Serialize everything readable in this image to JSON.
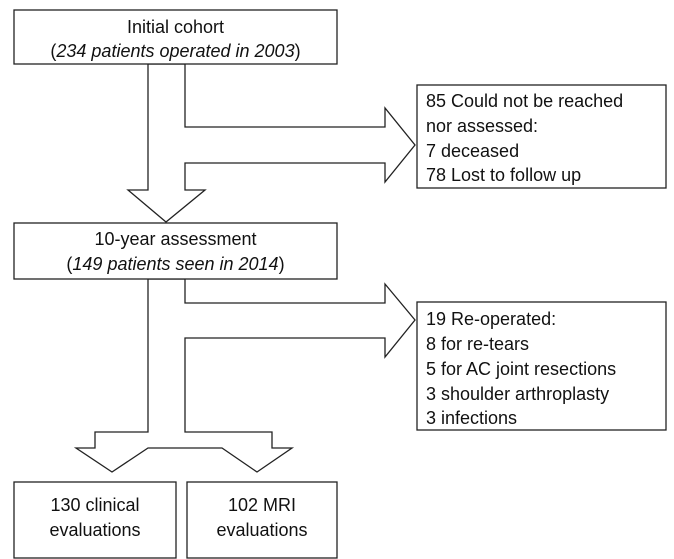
{
  "boxes": [
    {
      "lines": [
        "Initial cohort",
        "(234 patients operated in 2003)"
      ]
    },
    {
      "lines": [
        "85 Could not be reached",
        "nor assessed:",
        "7 deceased",
        "78 Lost to follow up"
      ]
    },
    {
      "lines": [
        "10-year assessment",
        "(149 patients seen in 2014)"
      ]
    },
    {
      "lines": [
        "19 Re-operated:",
        "8 for re-tears",
        "5 for AC joint resections",
        "3 shoulder arthroplasty",
        "3 infections"
      ]
    },
    {
      "lines": [
        "130 clinical",
        "evaluations"
      ]
    },
    {
      "lines": [
        "102 MRI",
        "evaluations"
      ]
    }
  ]
}
